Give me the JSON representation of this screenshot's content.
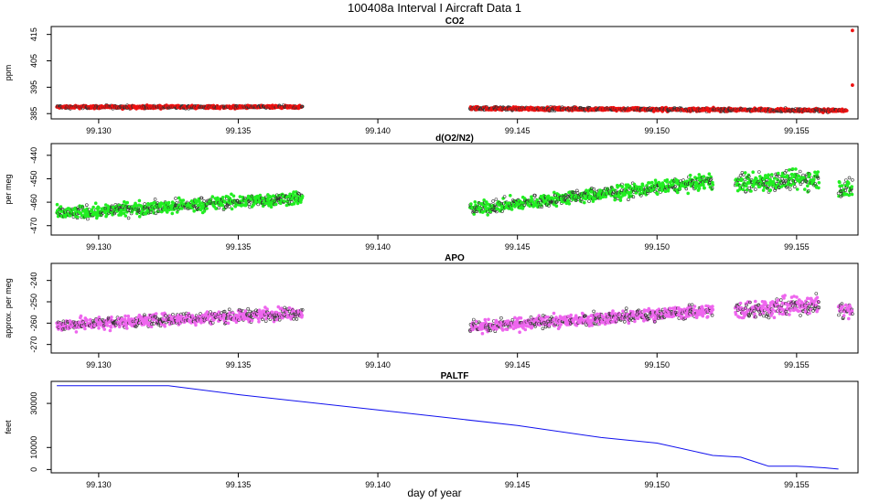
{
  "figure_title": "100408a   Interval I Aircraft Data 1",
  "x_axis_label": "day of year",
  "x_ticks": [
    99.13,
    99.135,
    99.14,
    99.145,
    99.15,
    99.155
  ],
  "x_tick_labels": [
    "99.130",
    "99.135",
    "99.140",
    "99.145",
    "99.150",
    "99.155"
  ],
  "colors": {
    "co2": "#ee1111",
    "o2n2": "#22ee22",
    "apo": "#ee66ee",
    "paltf": "#1111ee",
    "outline": "#333333"
  },
  "chart_data": [
    {
      "type": "scatter",
      "name": "co2",
      "title": "CO2",
      "ylabel": "ppm",
      "xlim": [
        99.1283,
        99.1572
      ],
      "ylim": [
        383,
        418
      ],
      "yticks": [
        385,
        395,
        405,
        415
      ],
      "ytick_labels": [
        "385",
        "395",
        "405",
        "415"
      ],
      "segments": [
        {
          "x_start": 99.1285,
          "x_end": 99.1373,
          "center": 387.5,
          "spread": 0.8,
          "trend": 0
        },
        {
          "x_start": 99.1433,
          "x_end": 99.1568,
          "center": 387.0,
          "spread": 0.9,
          "trend": -0.8
        }
      ],
      "outliers": [
        {
          "x": 99.157,
          "y": 416.5
        },
        {
          "x": 99.157,
          "y": 395.8
        }
      ]
    },
    {
      "type": "scatter",
      "name": "o2n2",
      "title": "d(O2/N2)",
      "ylabel": "per meg",
      "xlim": [
        99.1283,
        99.1572
      ],
      "ylim": [
        -474,
        -435
      ],
      "yticks": [
        -470,
        -460,
        -450,
        -440
      ],
      "ytick_labels": [
        "-470",
        "-460",
        "-450",
        "-440"
      ],
      "segments": [
        {
          "x_start": 99.1285,
          "x_end": 99.1373,
          "start_value": -465,
          "end_value": -458,
          "spread": 4
        },
        {
          "x_start": 99.1433,
          "x_end": 99.152,
          "start_value": -463,
          "end_value": -451,
          "spread": 4
        },
        {
          "x_start": 99.1528,
          "x_end": 99.1558,
          "start_value": -452,
          "end_value": -450,
          "spread": 6
        },
        {
          "x_start": 99.1565,
          "x_end": 99.157,
          "start_value": -454,
          "end_value": -454,
          "spread": 6
        }
      ]
    },
    {
      "type": "scatter",
      "name": "apo",
      "title": "APO",
      "ylabel": "approx. per meg",
      "xlim": [
        99.1283,
        99.1572
      ],
      "ylim": [
        -274,
        -232
      ],
      "yticks": [
        -270,
        -260,
        -250,
        -240
      ],
      "ytick_labels": [
        "-270",
        "-260",
        "-250",
        "-240"
      ],
      "segments": [
        {
          "x_start": 99.1285,
          "x_end": 99.1373,
          "start_value": -261,
          "end_value": -255,
          "spread": 4
        },
        {
          "x_start": 99.1433,
          "x_end": 99.152,
          "start_value": -262,
          "end_value": -254,
          "spread": 4
        },
        {
          "x_start": 99.1528,
          "x_end": 99.1558,
          "start_value": -254,
          "end_value": -251,
          "spread": 6
        },
        {
          "x_start": 99.1565,
          "x_end": 99.157,
          "start_value": -254,
          "end_value": -254,
          "spread": 6
        }
      ]
    },
    {
      "type": "line",
      "name": "paltf",
      "title": "PALTF",
      "ylabel": "feet",
      "xlim": [
        99.1283,
        99.1572
      ],
      "ylim": [
        -1500,
        40000
      ],
      "yticks": [
        0,
        10000,
        30000
      ],
      "ytick_labels": [
        "0",
        "10000",
        "30000"
      ],
      "x": [
        99.1285,
        99.1325,
        99.135,
        99.14,
        99.145,
        99.148,
        99.15,
        99.1515,
        99.152,
        99.153,
        99.154,
        99.155,
        99.1555,
        99.156,
        99.1565
      ],
      "y": [
        38000,
        38000,
        34000,
        27000,
        20000,
        14500,
        12000,
        7800,
        6400,
        5600,
        1500,
        1500,
        1200,
        800,
        200
      ]
    }
  ]
}
